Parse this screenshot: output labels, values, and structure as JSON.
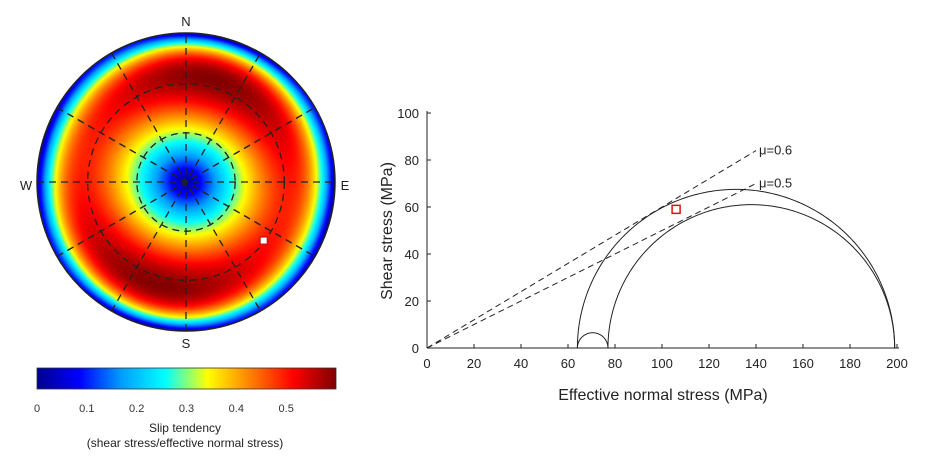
{
  "stereonet": {
    "compass": {
      "north": "N",
      "south": "S",
      "east": "E",
      "west": "W"
    },
    "pole_marker": {
      "trend_deg": 127,
      "plunge_deg": 35
    }
  },
  "colorbar": {
    "ticks": [
      "0",
      "0.1",
      "0.2",
      "0.3",
      "0.4",
      "0.5"
    ],
    "tick_values": [
      0,
      0.1,
      0.2,
      0.3,
      0.4,
      0.5
    ],
    "range": [
      0,
      0.6
    ],
    "colormap": [
      "#00008f",
      "#0000ff",
      "#00a0ff",
      "#00ffff",
      "#ffff00",
      "#ff8000",
      "#ff0000",
      "#800000"
    ],
    "title_line1": "Slip tendency",
    "title_line2": "(shear stress/effective normal stress)"
  },
  "chart_data": {
    "type": "line",
    "xlabel": "Effective normal stress (MPa)",
    "ylabel": "Shear stress (MPa)",
    "xlim": [
      0,
      200
    ],
    "ylim": [
      0,
      100
    ],
    "xticks": [
      "0",
      "20",
      "40",
      "60",
      "80",
      "100",
      "120",
      "140",
      "160",
      "180",
      "200"
    ],
    "yticks": [
      "0",
      "20",
      "40",
      "60",
      "80",
      "100"
    ],
    "grid": false,
    "mohr_circles": [
      {
        "sigma_min": 64,
        "sigma_max": 199
      },
      {
        "sigma_min": 77,
        "sigma_max": 199
      },
      {
        "sigma_min": 64,
        "sigma_max": 77
      }
    ],
    "friction_lines": [
      {
        "label": "μ=0.6",
        "mu": 0.6
      },
      {
        "label": "μ=0.5",
        "mu": 0.5
      }
    ],
    "marker": {
      "x": 106,
      "y": 59,
      "color": "#e01010"
    }
  }
}
